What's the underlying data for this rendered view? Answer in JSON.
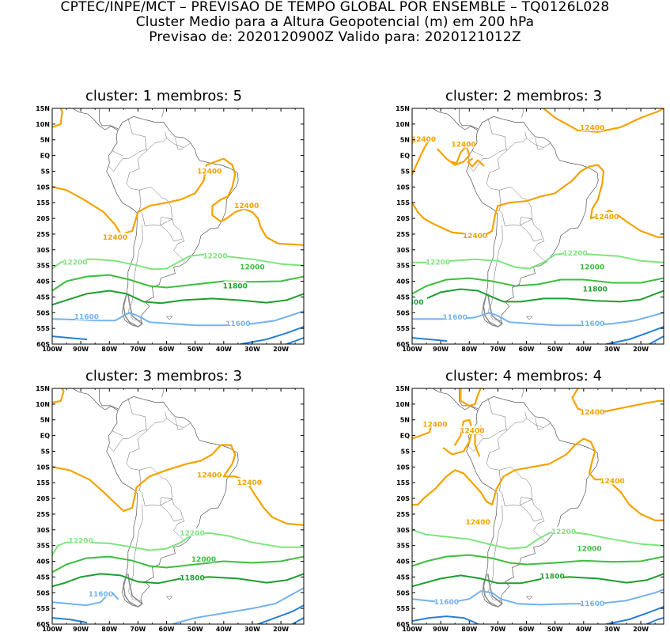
{
  "header": {
    "line1": "CPTEC/INPE/MCT – PREVISAO DE TEMPO GLOBAL POR ENSEMBLE – TQ0126L028",
    "line2": "Cluster Medio para a Altura Geopotencial (m) em 200 hPa",
    "line3": "Previsao de: 2020120900Z    Valido para: 2020121012Z"
  },
  "axes": {
    "lat_ticks": [
      "15N",
      "10N",
      "5N",
      "EQ",
      "5S",
      "10S",
      "15S",
      "20S",
      "25S",
      "30S",
      "35S",
      "40S",
      "45S",
      "50S",
      "55S",
      "60S"
    ],
    "lon_ticks": [
      "100W",
      "90W",
      "80W",
      "70W",
      "60W",
      "50W",
      "40W",
      "30W",
      "20W"
    ]
  },
  "colors": {
    "c12400": "#f5a300",
    "c12200": "#7ee57e",
    "c12000": "#3cbf3c",
    "c11800": "#1e9e2e",
    "c11600": "#73b2ee",
    "c11400": "#2a7fd4",
    "coast": "#8c8c8c"
  },
  "panels": [
    {
      "title": "cluster: 1   membros: 5",
      "labels": [
        "12400",
        "12400",
        "12400",
        "12200",
        "12200",
        "12000",
        "11800",
        "11600",
        "11600"
      ]
    },
    {
      "title": "cluster: 2   membros: 3",
      "labels": [
        "12400",
        "12400",
        "12400",
        "12400",
        "12400",
        "12200",
        "12200",
        "12000",
        "11800",
        "800",
        "11600",
        "11600"
      ]
    },
    {
      "title": "cluster: 3   membros: 3",
      "labels": [
        "12400",
        "12400",
        "12200",
        "12200",
        "12000",
        "11800",
        "11600"
      ]
    },
    {
      "title": "cluster: 4   membros: 4",
      "labels": [
        "12400",
        "12400",
        "12400",
        "12400",
        "12400",
        "12200",
        "12000",
        "11800",
        "11600",
        "11600"
      ]
    }
  ]
}
